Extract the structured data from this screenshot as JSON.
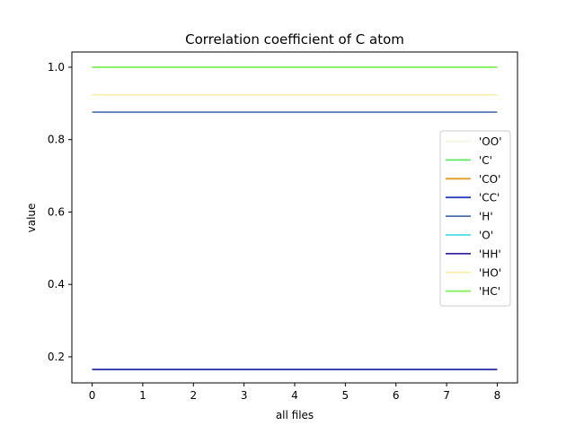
{
  "chart_data": {
    "type": "line",
    "title": "Correlation coefficient of C atom",
    "xlabel": "all files",
    "ylabel": "value",
    "x": [
      0,
      1,
      2,
      3,
      4,
      5,
      6,
      7,
      8
    ],
    "xlim": [
      -0.4,
      8.4
    ],
    "ylim": [
      0.128,
      1.042
    ],
    "xticks": [
      "0",
      "1",
      "2",
      "3",
      "4",
      "5",
      "6",
      "7",
      "8"
    ],
    "yticks": [
      "0.2",
      "0.4",
      "0.6",
      "0.8",
      "1.0"
    ],
    "grid": false,
    "legend_position": "center-right",
    "series": [
      {
        "name": "'OO'",
        "color": "#eef7dc",
        "values": [
          1.0,
          1.0,
          1.0,
          1.0,
          1.0,
          1.0,
          1.0,
          1.0,
          1.0
        ]
      },
      {
        "name": "'C'",
        "color": "#5ee85e",
        "values": [
          1.0,
          1.0,
          1.0,
          1.0,
          1.0,
          1.0,
          1.0,
          1.0,
          1.0
        ]
      },
      {
        "name": "'CO'",
        "color": "#e69a22",
        "values": [
          0.165,
          0.165,
          0.165,
          0.165,
          0.165,
          0.165,
          0.165,
          0.165,
          0.165
        ]
      },
      {
        "name": "'CC'",
        "color": "#2a3cc0",
        "values": [
          0.165,
          0.165,
          0.165,
          0.165,
          0.165,
          0.165,
          0.165,
          0.165,
          0.165
        ]
      },
      {
        "name": "'H'",
        "color": "#4a6ea8",
        "values": [
          0.876,
          0.876,
          0.876,
          0.876,
          0.876,
          0.876,
          0.876,
          0.876,
          0.876
        ]
      },
      {
        "name": "'O'",
        "color": "#48dfe8",
        "values": [
          0.165,
          0.165,
          0.165,
          0.165,
          0.165,
          0.165,
          0.165,
          0.165,
          0.165
        ]
      },
      {
        "name": "'HH'",
        "color": "#3a2aa8",
        "values": [
          0.165,
          0.165,
          0.165,
          0.165,
          0.165,
          0.165,
          0.165,
          0.165,
          0.165
        ]
      },
      {
        "name": "'HO'",
        "color": "#fbeeae",
        "values": [
          0.924,
          0.924,
          0.924,
          0.924,
          0.924,
          0.924,
          0.924,
          0.924,
          0.924
        ]
      },
      {
        "name": "'HC'",
        "color": "#86f25c",
        "values": [
          1.0,
          1.0,
          1.0,
          1.0,
          1.0,
          1.0,
          1.0,
          1.0,
          1.0
        ]
      }
    ]
  }
}
